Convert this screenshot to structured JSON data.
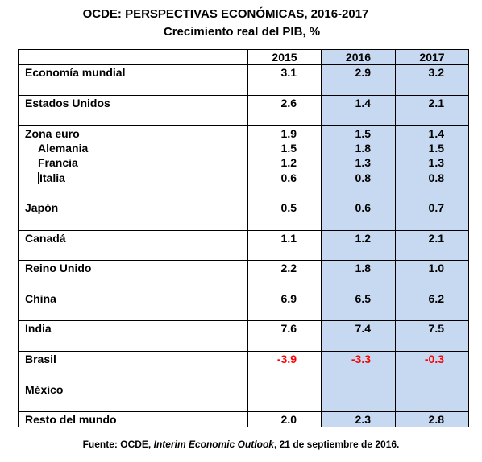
{
  "title": "OCDE:  PERSPECTIVAS ECONÓMICAS, 2016-2017",
  "subtitle": "Crecimiento real del PIB, %",
  "table": {
    "columns": [
      "",
      "2015",
      "2016",
      "2017"
    ],
    "rows": [
      {
        "label": "Economía mundial",
        "v": [
          "3.1",
          "2.9",
          "3.2"
        ]
      },
      {
        "label": "Estados Unidos",
        "v": [
          "2.6",
          "1.4",
          "2.1"
        ]
      },
      {
        "label": "Zona euro",
        "v": [
          "1.9",
          "1.5",
          "1.4"
        ]
      },
      {
        "label": "Alemania",
        "v": [
          "1.5",
          "1.8",
          "1.5"
        ]
      },
      {
        "label": "Francia",
        "v": [
          "1.2",
          "1.3",
          "1.3"
        ]
      },
      {
        "label": "Italia",
        "v": [
          "0.6",
          "0.8",
          "0.8"
        ]
      },
      {
        "label": "Japón",
        "v": [
          "0.5",
          "0.6",
          "0.7"
        ]
      },
      {
        "label": "Canadá",
        "v": [
          "1.1",
          "1.2",
          "2.1"
        ]
      },
      {
        "label": "Reino Unido",
        "v": [
          "2.2",
          "1.8",
          "1.0"
        ]
      },
      {
        "label": "China",
        "v": [
          "6.9",
          "6.5",
          "6.2"
        ]
      },
      {
        "label": "India",
        "v": [
          "7.6",
          "7.4",
          "7.5"
        ]
      },
      {
        "label": "Brasil",
        "v": [
          "-3.9",
          "-3.3",
          "-0.3"
        ]
      },
      {
        "label": "México",
        "v": [
          "",
          "",
          ""
        ]
      },
      {
        "label": "Resto del mundo",
        "v": [
          "2.0",
          "2.3",
          "2.8"
        ]
      }
    ]
  },
  "colors": {
    "highlight_columns": "#c6d9f1",
    "negative_values": "#ff0000"
  },
  "footer": {
    "prefix": "Fuente: OCDE, ",
    "publication": "Interim Economic Outlook",
    "suffix": ", 21 de septiembre de 2016."
  }
}
